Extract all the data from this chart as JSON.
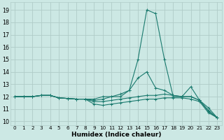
{
  "xlabel": "Humidex (Indice chaleur)",
  "xlim": [
    -0.5,
    23.5
  ],
  "ylim": [
    9.7,
    19.6
  ],
  "yticks": [
    10,
    11,
    12,
    13,
    14,
    15,
    16,
    17,
    18,
    19
  ],
  "xticks": [
    0,
    1,
    2,
    3,
    4,
    5,
    6,
    7,
    8,
    9,
    10,
    11,
    12,
    13,
    14,
    15,
    16,
    17,
    18,
    19,
    20,
    21,
    22,
    23
  ],
  "bg_color": "#cce8e4",
  "grid_color": "#b0ccc8",
  "line_color": "#1a7a6e",
  "lines": [
    [
      12.0,
      12.0,
      12.0,
      12.1,
      12.1,
      11.9,
      11.85,
      11.8,
      11.8,
      11.8,
      12.0,
      12.0,
      12.0,
      12.5,
      15.0,
      19.0,
      18.7,
      15.0,
      12.0,
      12.0,
      12.8,
      11.7,
      11.1,
      10.3
    ],
    [
      12.0,
      12.0,
      12.0,
      12.1,
      12.1,
      11.9,
      11.85,
      11.8,
      11.8,
      11.7,
      11.8,
      12.0,
      12.2,
      12.5,
      13.5,
      14.0,
      12.7,
      12.5,
      12.1,
      12.0,
      12.0,
      11.7,
      10.9,
      10.3
    ],
    [
      12.0,
      12.0,
      12.0,
      12.1,
      12.1,
      11.9,
      11.85,
      11.8,
      11.8,
      11.6,
      11.6,
      11.7,
      11.8,
      11.9,
      12.0,
      12.1,
      12.1,
      12.2,
      12.1,
      12.0,
      12.0,
      11.7,
      10.8,
      10.3
    ],
    [
      12.0,
      12.0,
      12.0,
      12.1,
      12.1,
      11.9,
      11.85,
      11.8,
      11.8,
      11.4,
      11.3,
      11.4,
      11.5,
      11.6,
      11.7,
      11.8,
      11.8,
      11.9,
      11.9,
      11.9,
      11.8,
      11.6,
      10.7,
      10.3
    ]
  ]
}
